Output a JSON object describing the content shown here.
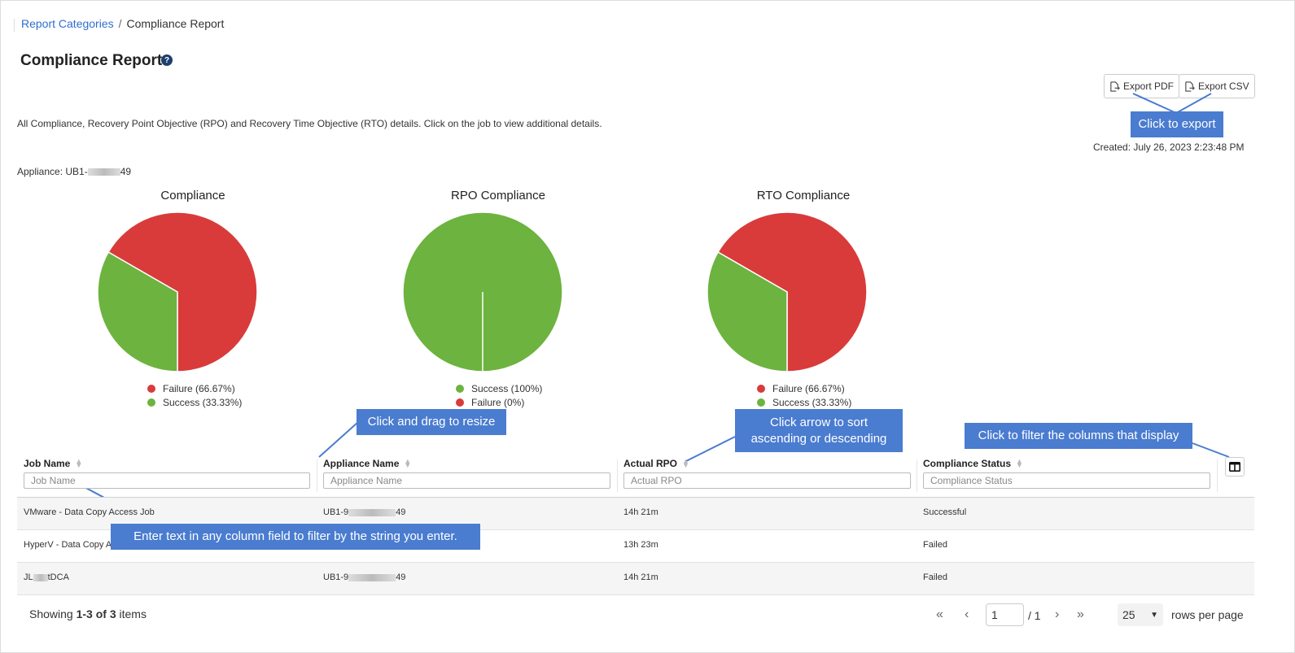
{
  "breadcrumb": {
    "parent": "Report Categories",
    "separator": "/",
    "current": "Compliance Report"
  },
  "page": {
    "title": "Compliance Report",
    "help_glyph": "?",
    "description": "All Compliance, Recovery Point Objective (RPO) and Recovery Time Objective (RTO) details. Click on the job to view additional details.",
    "created": "Created: July 26, 2023 2:23:48 PM",
    "appliance_prefix": "Appliance: UB1-",
    "appliance_suffix": "49"
  },
  "toolbar": {
    "export_pdf": "Export PDF",
    "export_csv": "Export CSV"
  },
  "colors": {
    "failure": "#d93b3b",
    "success": "#6db33f",
    "accent": "#4a7cd0",
    "link": "#2f6fcf"
  },
  "chart_data": [
    {
      "type": "pie",
      "title": "Compliance",
      "slices": [
        {
          "label": "Failure (66.67%)",
          "value": 66.67,
          "color": "#d93b3b"
        },
        {
          "label": "Success (33.33%)",
          "value": 33.33,
          "color": "#6db33f"
        }
      ]
    },
    {
      "type": "pie",
      "title": "RPO Compliance",
      "slices": [
        {
          "label": "Success (100%)",
          "value": 100,
          "color": "#6db33f"
        },
        {
          "label": "Failure (0%)",
          "value": 0,
          "color": "#d93b3b"
        }
      ]
    },
    {
      "type": "pie",
      "title": "RTO Compliance",
      "slices": [
        {
          "label": "Failure (66.67%)",
          "value": 66.67,
          "color": "#d93b3b"
        },
        {
          "label": "Success (33.33%)",
          "value": 33.33,
          "color": "#6db33f"
        }
      ]
    }
  ],
  "callouts": {
    "export": "Click to export",
    "resize": "Click and drag to resize",
    "sort_line1": "Click arrow to sort",
    "sort_line2": "ascending or descending",
    "columns": "Click to filter the columns that display",
    "filter": "Enter text in any column field to filter by the string you enter."
  },
  "table": {
    "columns": [
      {
        "label": "Job Name",
        "placeholder": "Job Name"
      },
      {
        "label": "Appliance Name",
        "placeholder": "Appliance Name"
      },
      {
        "label": "Actual RPO",
        "placeholder": "Actual RPO"
      },
      {
        "label": "Compliance Status",
        "placeholder": "Compliance Status"
      }
    ],
    "rows": [
      {
        "job_prefix": "VMware - Data Copy Access Job",
        "job_suffix": "",
        "appliance_prefix": "UB1-9",
        "appliance_suffix": "49",
        "rpo": "14h 21m",
        "status": "Successful"
      },
      {
        "job_prefix": "HyperV - Data Copy Ac",
        "job_suffix": "",
        "appliance_prefix": "",
        "appliance_suffix": "",
        "rpo": "13h 23m",
        "status": "Failed"
      },
      {
        "job_prefix": "JL",
        "job_suffix": "tDCA",
        "appliance_prefix": "UB1-9",
        "appliance_suffix": "49",
        "rpo": "14h 21m",
        "status": "Failed"
      }
    ]
  },
  "footer": {
    "showing_prefix": "Showing ",
    "showing_range": "1-3 of 3",
    "showing_suffix": " items",
    "page_value": "1",
    "page_total": "/ 1",
    "rows_value": "25",
    "rows_label": "rows per page"
  }
}
